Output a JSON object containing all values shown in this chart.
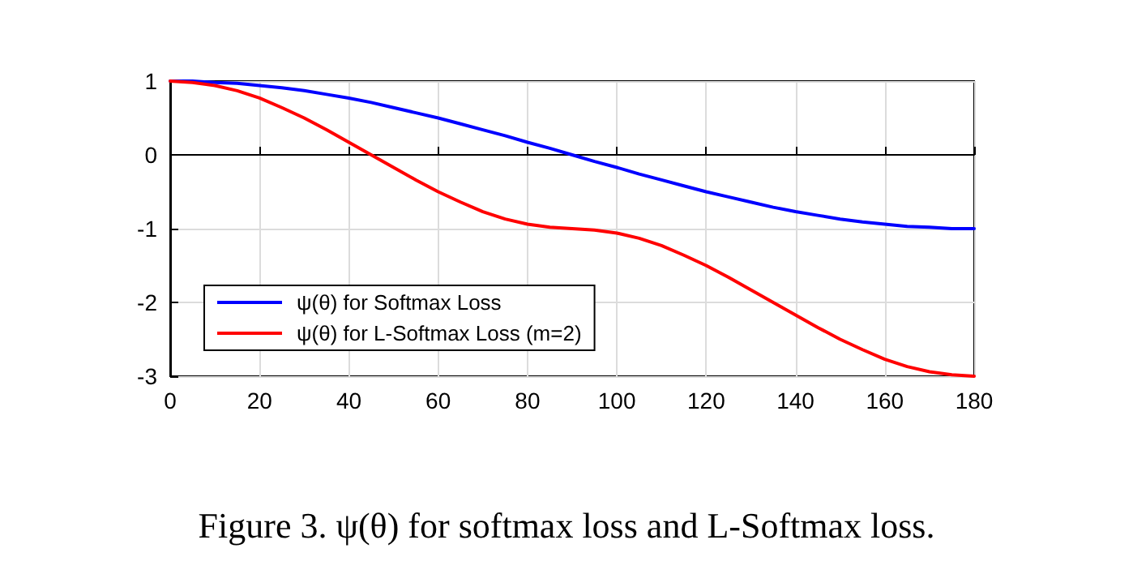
{
  "chart_data": {
    "type": "line",
    "title": "Figure 3. ψ(θ) for softmax loss and L-Softmax loss.",
    "x": [
      0,
      5,
      10,
      15,
      20,
      25,
      30,
      35,
      40,
      45,
      50,
      55,
      60,
      65,
      70,
      75,
      80,
      85,
      90,
      95,
      100,
      105,
      110,
      115,
      120,
      125,
      130,
      135,
      140,
      145,
      150,
      155,
      160,
      165,
      170,
      175,
      180
    ],
    "series": [
      {
        "name": "ψ(θ) for Softmax Loss",
        "color": "#0000ff",
        "values": [
          1,
          1,
          0.98,
          0.97,
          0.94,
          0.91,
          0.87,
          0.82,
          0.77,
          0.71,
          0.64,
          0.57,
          0.5,
          0.42,
          0.34,
          0.26,
          0.17,
          0.09,
          0,
          -0.09,
          -0.17,
          -0.26,
          -0.34,
          -0.42,
          -0.5,
          -0.57,
          -0.64,
          -0.71,
          -0.77,
          -0.82,
          -0.87,
          -0.91,
          -0.94,
          -0.97,
          -0.98,
          -1,
          -1
        ]
      },
      {
        "name": "ψ(θ) for L-Softmax Loss (m=2)",
        "color": "#ff0000",
        "values": [
          1,
          0.98,
          0.94,
          0.87,
          0.77,
          0.64,
          0.5,
          0.34,
          0.17,
          0,
          -0.17,
          -0.34,
          -0.5,
          -0.64,
          -0.77,
          -0.87,
          -0.94,
          -0.98,
          -1,
          -1.02,
          -1.06,
          -1.13,
          -1.23,
          -1.36,
          -1.5,
          -1.66,
          -1.83,
          -2,
          -2.17,
          -2.34,
          -2.5,
          -2.64,
          -2.77,
          -2.87,
          -2.94,
          -2.98,
          -3
        ]
      }
    ],
    "xlim": [
      0,
      180
    ],
    "xticks": [
      0,
      20,
      40,
      60,
      80,
      100,
      120,
      140,
      160,
      180
    ],
    "ylim": [
      -3,
      1
    ],
    "yticks": [
      -3,
      -2,
      -1,
      0,
      1
    ],
    "grid": true,
    "legend": "bottom left",
    "marker": "none",
    "line_style": "solid"
  }
}
